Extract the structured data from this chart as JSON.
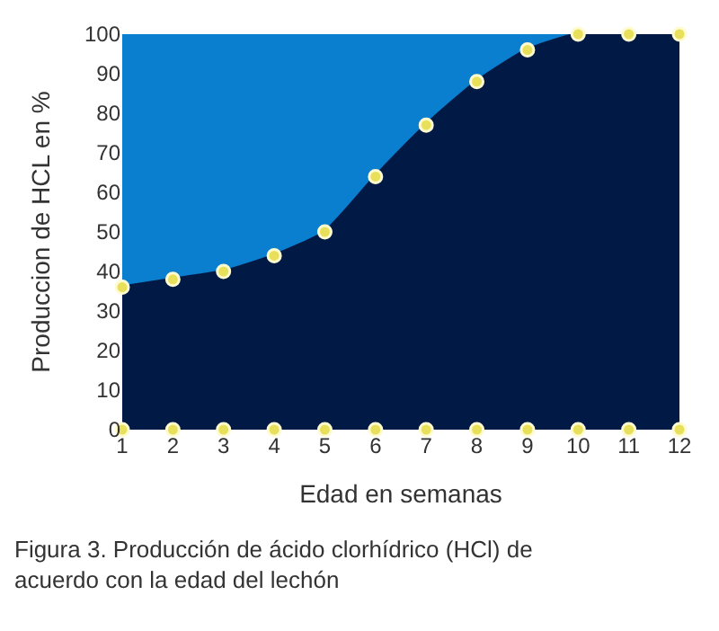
{
  "chart_data": {
    "type": "area",
    "xlabel": "Edad en semanas",
    "ylabel": "Produccion de HCL en %",
    "x": [
      1,
      2,
      3,
      4,
      5,
      6,
      7,
      8,
      9,
      10,
      11,
      12
    ],
    "series": [
      {
        "color": "#001a45",
        "values": [
          36,
          38,
          40,
          44,
          50,
          64,
          77,
          88,
          96,
          100,
          100,
          100
        ]
      },
      {
        "type": "scatter",
        "color": "#e8e05a",
        "values": [
          0,
          0,
          0,
          0,
          0,
          0,
          0,
          0,
          0,
          0,
          0,
          0
        ]
      }
    ],
    "marker": "circle",
    "xlim": [
      1,
      12
    ],
    "xticks": [
      1,
      2,
      3,
      4,
      5,
      6,
      7,
      8,
      9,
      10,
      11,
      12
    ],
    "ylim": [
      0,
      100
    ],
    "yticks": [
      0,
      10,
      20,
      30,
      40,
      50,
      60,
      70,
      80,
      90,
      100
    ],
    "grid": false,
    "annotations": [
      "Figura 3. Producción de ácido clorhídrico (HCl) de acuerdo con la edad del lechón"
    ]
  }
}
